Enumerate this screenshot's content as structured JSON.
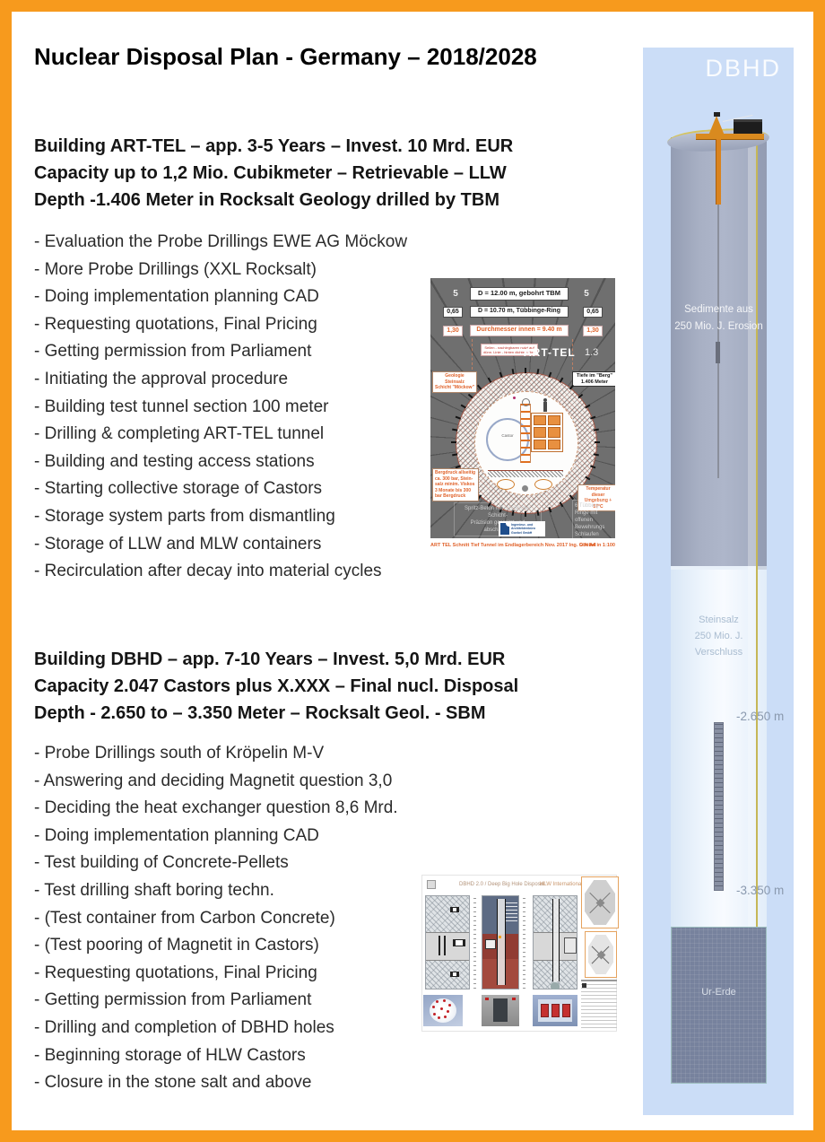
{
  "colors": {
    "border_orange": "#F79A1D",
    "panel_blue": "#CBDDF7",
    "diagram_gray": "#6F6F6F",
    "accent_orange": "#E0622A"
  },
  "page": {
    "title": "Nuclear Disposal Plan - Germany – 2018/2028"
  },
  "section_arttel": {
    "heading": [
      "Building ART-TEL – app. 3-5 Years – Invest. 10 Mrd. EUR",
      "Capacity up to 1,2 Mio. Cubikmeter – Retrievable – LLW",
      "Depth -1.406 Meter in Rocksalt Geology drilled by TBM"
    ],
    "items": [
      "- Evaluation the Probe Drillings EWE AG Möckow",
      "- More Probe Drillings (XXL Rocksalt)",
      "- Doing implementation planning CAD",
      "- Requesting quotations, Final Pricing",
      "- Getting permission from Parliament",
      "- Initiating the approval procedure",
      "- Building test tunnel section 100 meter",
      "- Drilling & completing ART-TEL tunnel",
      "- Building and testing access stations",
      "- Starting collective storage of Castors",
      "- Storage system parts from dismantling",
      "- Storage of LLW and MLW containers",
      "- Recirculation after decay into material cycles"
    ]
  },
  "section_dbhd": {
    "heading": [
      "Building DBHD – app. 7-10 Years – Invest. 5,0 Mrd. EUR",
      "Capacity 2.047 Castors plus X.XXX – Final nucl. Disposal",
      "Depth - 2.650 to – 3.350 Meter – Rocksalt Geol. - SBM"
    ],
    "items": [
      "- Probe Drillings south of Kröpelin M-V",
      "- Answering and deciding Magnetit question 3,0",
      "- Deciding the heat exchanger question 8,6 Mrd.",
      "- Doing implementation planning CAD",
      "- Test building of Concrete-Pellets",
      "- Test drilling shaft boring techn.",
      "- (Test container from Carbon Concrete)",
      "- (Test pooring of Magnetit in Castors)",
      "- Requesting quotations, Final Pricing",
      "- Getting permission from Parliament",
      "- Drilling and completion of DBHD holes",
      "- Beginning storage of HLW Castors",
      "- Closure in the stone salt and above"
    ]
  },
  "arttel_figure": {
    "dim_rows": [
      {
        "left": "5",
        "center": "D = 12.00 m, gebohrt TBM",
        "right": "5"
      },
      {
        "left": "0,65",
        "center": "D = 10.70 m, Tübbinge-Ring",
        "right": "0,65"
      },
      {
        "left": "1,30",
        "center": "Durchmesser innen = 9.40 m",
        "right": "1,30"
      }
    ],
    "name": "ART-TEL",
    "version": "1.3",
    "castor_label": "Castor",
    "geo_note": [
      "Geologie Steinsalz",
      "Schicht \"Möckow\""
    ],
    "depth_note": [
      "Tiefe im \"Berg\"",
      "1.406 Meter"
    ],
    "red_note": [
      "Seilen - nachlegbaren nutzt auf",
      "dünn. Linie - hinten dichte halten"
    ],
    "press_note": [
      "Bergdruck allseitig",
      "ca. 300 bar, Stein-",
      "salz minim. Viskos",
      "3 Monate bis 300",
      "bar Bergdruck"
    ],
    "temp_note": [
      "Temperatur dieser",
      "Umgebung + 57°C"
    ],
    "spritz_note": [
      "Spritz-Beton mit robotischer Schicht-",
      "Präzision gespritzt und abschattiert"
    ],
    "tubbing_note": [
      "6 Tübbing-Ringe mit",
      "offenen Bewehrungs",
      "Schlaufen eingebaut"
    ],
    "logo_lines": [
      "Ingenieur- und",
      "Architektenbüro",
      "Goebel GmbH"
    ],
    "caption_left": "ART TEL Schnitt Tief Tunnel im Endlagerbereich Nov. 2017 Ing. Goebel",
    "caption_right": "DIN A4 in 1:100"
  },
  "sheet_figure": {
    "title": "DBHD 2.0 / Deep Big Hole Disposal",
    "subtitle": "HLW International"
  },
  "panel": {
    "label": "DBHD",
    "sediment_lines": [
      "Sedimente aus",
      "250 Mio. J. Erosion"
    ],
    "salt_lines": [
      "Steinsalz",
      "250 Mio. J.",
      "Verschluss"
    ],
    "depth_top": "-2.650 m",
    "depth_bottom": "-3.350 m",
    "urerde_label": "Ur-Erde"
  }
}
